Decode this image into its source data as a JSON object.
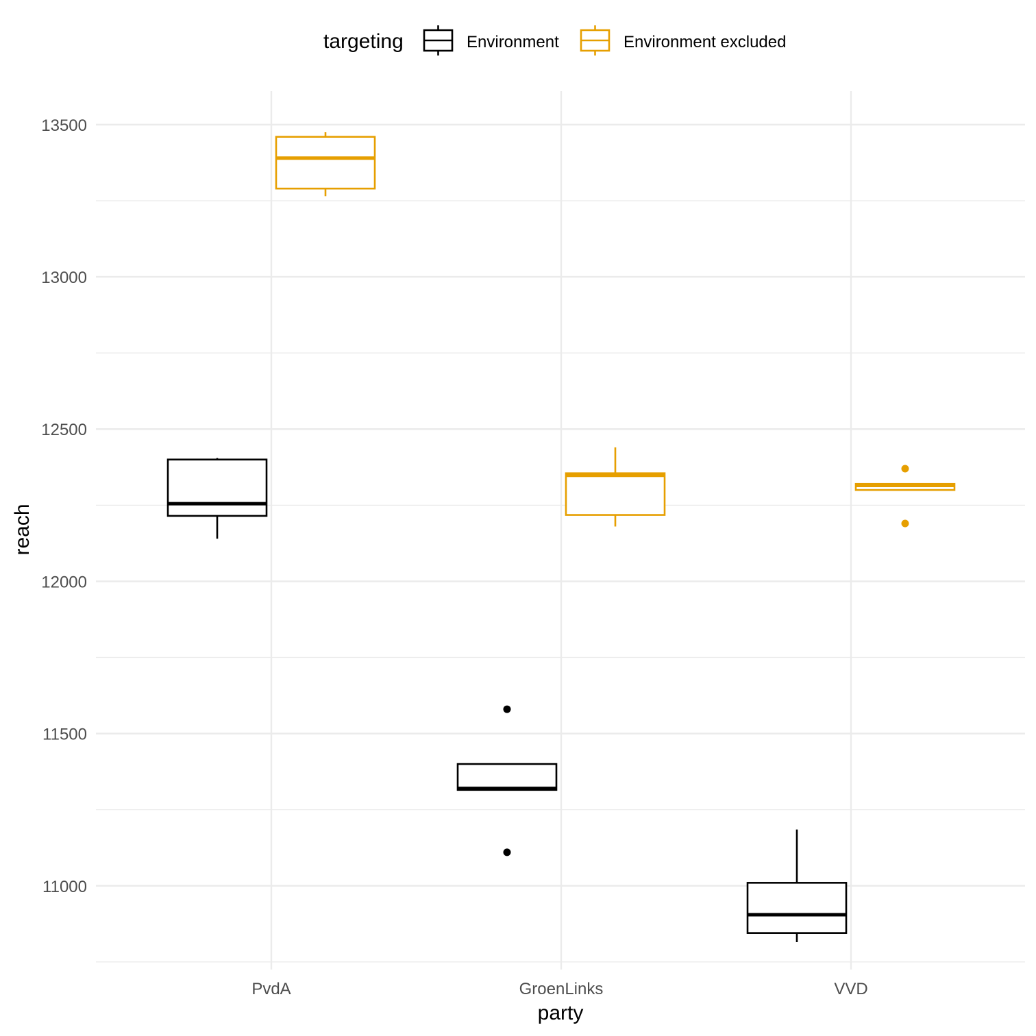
{
  "chart_data": {
    "type": "box",
    "xlabel": "party",
    "ylabel": "reach",
    "ylim": [
      10725,
      13610
    ],
    "yticks": [
      11000,
      11500,
      12000,
      12500,
      13000,
      13500
    ],
    "ytick_labels": [
      "11000",
      "11500",
      "12000",
      "12500",
      "13000",
      "13500"
    ],
    "categories": [
      "PvdA",
      "GroenLinks",
      "VVD"
    ],
    "grid": true,
    "legend": {
      "title": "targeting",
      "position": "top",
      "entries": [
        "Environment",
        "Environment excluded"
      ]
    },
    "series": [
      {
        "name": "Environment",
        "color": "#000000",
        "boxes": [
          {
            "category": "PvdA",
            "whisker_low": 12140,
            "q1": 12215,
            "median": 12255,
            "q3": 12400,
            "whisker_high": 12405,
            "outliers": []
          },
          {
            "category": "GroenLinks",
            "whisker_low": 11315,
            "q1": 11315,
            "median": 11320,
            "q3": 11400,
            "whisker_high": 11400,
            "outliers": [
              11110,
              11580
            ]
          },
          {
            "category": "VVD",
            "whisker_low": 10815,
            "q1": 10845,
            "median": 10905,
            "q3": 11010,
            "whisker_high": 11185,
            "outliers": []
          }
        ]
      },
      {
        "name": "Environment excluded",
        "color": "#E69F00",
        "boxes": [
          {
            "category": "PvdA",
            "whisker_low": 13265,
            "q1": 13290,
            "median": 13390,
            "q3": 13460,
            "whisker_high": 13475,
            "outliers": []
          },
          {
            "category": "GroenLinks",
            "whisker_low": 12180,
            "q1": 12218,
            "median": 12348,
            "q3": 12355,
            "whisker_high": 12440,
            "outliers": []
          },
          {
            "category": "VVD",
            "whisker_low": 12300,
            "q1": 12300,
            "median": 12315,
            "q3": 12320,
            "whisker_high": 12320,
            "outliers": [
              12190,
              12370
            ]
          }
        ]
      }
    ]
  }
}
